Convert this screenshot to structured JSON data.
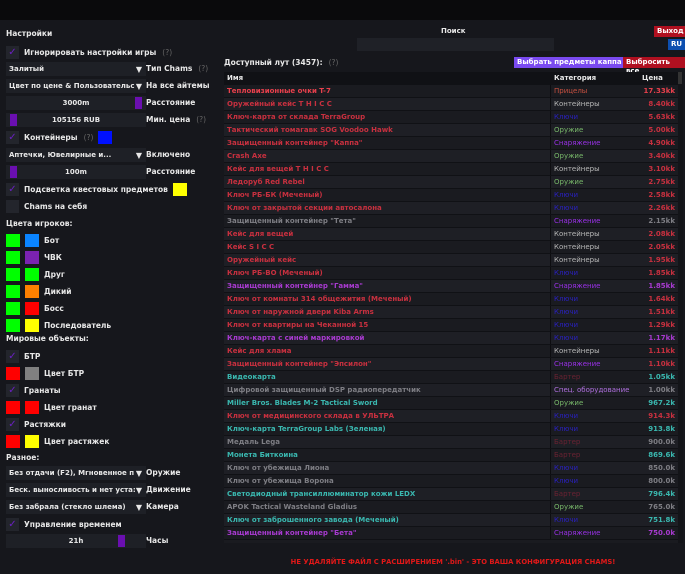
{
  "settings": {
    "title": "Настройки",
    "ignore_game": "Игнорировать настройки игры",
    "help": "(?)",
    "chams_type_value": "Залитый",
    "chams_type_label": "Тип Chams",
    "color_mode_value": "Цвет по цене & Пользовательс",
    "color_mode_label": "На все айтемы",
    "distance_value": "3000m",
    "distance_label": "Расстояние",
    "min_price_value": "105156 RUB",
    "min_price_label": "Мин. цена",
    "containers": "Контейнеры",
    "containers_filter_value": "Аптечки, Ювелирные и...",
    "containers_filter_label": "Включено",
    "container_distance_value": "100m",
    "container_distance_label": "Расстояние",
    "quest_highlight": "Подсветка квестовых предметов",
    "chams_self": "Chams на себя",
    "player_colors_title": "Цвета игроков:",
    "player_colors": [
      {
        "label": "Бот",
        "a": "#00ff00",
        "b": "#0a84ff"
      },
      {
        "label": "ЧВК",
        "a": "#00ff00",
        "b": "#7a22b0"
      },
      {
        "label": "Друг",
        "a": "#00ff00",
        "b": "#00ff00"
      },
      {
        "label": "Дикий",
        "a": "#00ff00",
        "b": "#ff8000"
      },
      {
        "label": "Босс",
        "a": "#00ff00",
        "b": "#ff0000"
      },
      {
        "label": "Последователь",
        "a": "#00ff00",
        "b": "#ffff00"
      }
    ],
    "world_title": "Мировые объекты:",
    "btr": "БТР",
    "btr_color": "Цвет БТР",
    "grenades": "Гранаты",
    "grenades_color": "Цвет гранат",
    "tripwires": "Растяжки",
    "tripwires_color": "Цвет растяжек",
    "misc_title": "Разное:",
    "weapon_value": "Без отдачи (F2), Мгновенное п",
    "weapon_label": "Оружие",
    "movement_value": "Беск. выносливость и нет уста:",
    "movement_label": "Движение",
    "camera_value": "Без забрала (стекло шлема)",
    "camera_label": "Камера",
    "time_control": "Управление временем",
    "hours_value": "21h",
    "hours_label": "Часы"
  },
  "main": {
    "search_label": "Поиск",
    "search_value": "",
    "exit": "Выход",
    "lang": "RU",
    "loot_title": "Доступный лут (3457):",
    "help": "(?)",
    "select_kappa": "Выбрать предметы каппа",
    "drop_all": "Выбросить все",
    "columns": [
      "Имя",
      "Категория",
      "Цена"
    ],
    "warning": "НЕ УДАЛЯЙТЕ ФАЙЛ С РАСШИРЕНИЕМ '.bin' - ЭТО ВАША КОНФИГУРАЦИЯ CHAMS!"
  },
  "colors": {
    "accent": "#6a0fb0",
    "red": "#c8303f",
    "gray": "#7e7e84",
    "teal": "#3ab8b0",
    "purple": "#a83ad0",
    "bright": "#e8404c",
    "cat": {
      "Прицелы": "#c85040",
      "Контейнеры": "#b8b8b8",
      "Ключи": "#2a20c0",
      "Оружие": "#78b86a",
      "Снаряжение": "#9a30e8",
      "Бартер": "#6a2232",
      "Спец. оборудование": "#b070e0"
    }
  },
  "rows": [
    [
      "Тепловизионные очки T-7",
      "Прицелы",
      "17.33kk",
      "bright"
    ],
    [
      "Оружейный кейс T H I C C",
      "Контейнеры",
      "8.40kk",
      "red"
    ],
    [
      "Ключ-карта от склада TerraGroup",
      "Ключи",
      "5.63kk",
      "red"
    ],
    [
      "Тактический томагавк SOG Voodoo Hawk",
      "Оружие",
      "5.00kk",
      "red"
    ],
    [
      "Защищенный контейнер \"Каппа\"",
      "Снаряжение",
      "4.90kk",
      "red"
    ],
    [
      "Crash Axe",
      "Оружие",
      "3.40kk",
      "red"
    ],
    [
      "Кейс для вещей T H I C C",
      "Контейнеры",
      "3.10kk",
      "red"
    ],
    [
      "Ледоруб Red Rebel",
      "Оружие",
      "2.75kk",
      "red"
    ],
    [
      "Ключ РБ-БК (Меченый)",
      "Ключи",
      "2.58kk",
      "red"
    ],
    [
      "Ключ от закрытой секции автосалона",
      "Ключи",
      "2.26kk",
      "red"
    ],
    [
      "Защищенный контейнер \"Тета\"",
      "Снаряжение",
      "2.15kk",
      "gray"
    ],
    [
      "Кейс для вещей",
      "Контейнеры",
      "2.08kk",
      "red"
    ],
    [
      "Кейс S I C C",
      "Контейнеры",
      "2.05kk",
      "red"
    ],
    [
      "Оружейный кейс",
      "Контейнеры",
      "1.95kk",
      "red"
    ],
    [
      "Ключ РБ-ВО (Меченый)",
      "Ключи",
      "1.85kk",
      "red"
    ],
    [
      "Защищенный контейнер \"Гамма\"",
      "Снаряжение",
      "1.85kk",
      "purple"
    ],
    [
      "Ключ от комнаты 314 общежития (Меченый)",
      "Ключи",
      "1.64kk",
      "red"
    ],
    [
      "Ключ от наружной двери Kiba Arms",
      "Ключи",
      "1.51kk",
      "red"
    ],
    [
      "Ключ от квартиры на Чеканной 15",
      "Ключи",
      "1.29kk",
      "red"
    ],
    [
      "Ключ-карта с синей маркировкой",
      "Ключи",
      "1.17kk",
      "purple"
    ],
    [
      "Кейс для хлама",
      "Контейнеры",
      "1.11kk",
      "red"
    ],
    [
      "Защищенный контейнер \"Эпсилон\"",
      "Снаряжение",
      "1.10kk",
      "red"
    ],
    [
      "Видеокарта",
      "Бартер",
      "1.05kk",
      "teal"
    ],
    [
      "Цифровой защищенный DSP радиопередатчик",
      "Спец. оборудование",
      "1.00kk",
      "gray"
    ],
    [
      "Miller Bros. Blades M-2 Tactical Sword",
      "Оружие",
      "967.2k",
      "teal"
    ],
    [
      "Ключ от медицинского склада в УЛЬТРА",
      "Ключи",
      "914.3k",
      "red"
    ],
    [
      "Ключ-карта TerraGroup Labs (Зеленая)",
      "Ключи",
      "913.8k",
      "teal"
    ],
    [
      "Медаль Lega",
      "Бартер",
      "900.0k",
      "gray"
    ],
    [
      "Монета Биткоина",
      "Бартер",
      "869.6k",
      "teal"
    ],
    [
      "Ключ от убежища Лиона",
      "Ключи",
      "850.0k",
      "gray"
    ],
    [
      "Ключ от убежища Ворона",
      "Ключи",
      "800.0k",
      "gray"
    ],
    [
      "Светодиодный трансиллюминатор кожи LEDX",
      "Бартер",
      "796.4k",
      "teal"
    ],
    [
      "APOK Tactical Wasteland Gladius",
      "Оружие",
      "765.0k",
      "gray"
    ],
    [
      "Ключ от заброшенного завода (Меченый)",
      "Ключи",
      "751.8k",
      "teal"
    ],
    [
      "Защищенный контейнер \"Бета\"",
      "Снаряжение",
      "750.0k",
      "purple"
    ]
  ]
}
